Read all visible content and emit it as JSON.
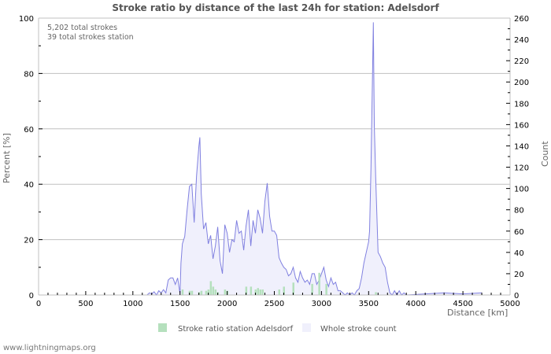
{
  "title": "Stroke ratio by distance of the last 24h for station: Adelsdorf",
  "info": {
    "line1": "5,202 total strokes",
    "line2": "39 total strokes station"
  },
  "footer": "www.lightningmaps.org",
  "colors": {
    "grid": "#c0c0c0",
    "whole_line": "#8080e0",
    "whole_fill": "#f0f0fc",
    "station_bar": "#b5e0bd",
    "axis": "#c0c0c0"
  },
  "legend": [
    {
      "label": "Stroke ratio station Adelsdorf",
      "color": "#b5e0bd"
    },
    {
      "label": "Whole stroke count",
      "color": "#f0f0fc"
    }
  ],
  "chart_data": {
    "type": "bar+area",
    "title": "Stroke ratio by distance of the last 24h for station: Adelsdorf",
    "xlabel": "Distance   [km]",
    "ylabel_left": "Percent   [%]",
    "ylabel_right": "Count",
    "xlim": [
      0,
      5000
    ],
    "ylim_left": [
      0,
      100
    ],
    "ylim_right": [
      0,
      260
    ],
    "x_ticks": [
      0,
      500,
      1000,
      1500,
      2000,
      2500,
      3000,
      3500,
      4000,
      4500,
      5000
    ],
    "y_ticks_left": [
      0,
      20,
      40,
      60,
      80,
      100
    ],
    "y_ticks_right": [
      0,
      20,
      40,
      60,
      80,
      100,
      120,
      140,
      160,
      180,
      200,
      220,
      240,
      260
    ],
    "grid": true,
    "legend_position": "bottom",
    "series": [
      {
        "name": "Whole stroke count",
        "axis": "right",
        "type": "area",
        "x": [
          1150,
          1175,
          1200,
          1225,
          1250,
          1275,
          1300,
          1325,
          1350,
          1375,
          1400,
          1425,
          1450,
          1475,
          1500,
          1510,
          1525,
          1550,
          1575,
          1600,
          1625,
          1650,
          1675,
          1700,
          1710,
          1725,
          1750,
          1775,
          1800,
          1825,
          1850,
          1875,
          1900,
          1925,
          1950,
          1975,
          2000,
          2025,
          2050,
          2075,
          2100,
          2125,
          2150,
          2175,
          2200,
          2225,
          2250,
          2275,
          2300,
          2325,
          2350,
          2375,
          2400,
          2425,
          2450,
          2475,
          2500,
          2525,
          2550,
          2575,
          2600,
          2625,
          2650,
          2675,
          2700,
          2725,
          2750,
          2775,
          2800,
          2825,
          2850,
          2875,
          2900,
          2925,
          2950,
          2975,
          3000,
          3025,
          3050,
          3075,
          3100,
          3125,
          3150,
          3175,
          3200,
          3225,
          3250,
          3275,
          3300,
          3325,
          3350,
          3375,
          3400,
          3425,
          3450,
          3475,
          3500,
          3510,
          3525,
          3540,
          3550,
          3560,
          3575,
          3600,
          3625,
          3650,
          3675,
          3700,
          3725,
          3750,
          3775,
          3800,
          3825,
          3850,
          3875,
          3900,
          4300,
          4500,
          4700
        ],
        "values": [
          0,
          2,
          1,
          3,
          0,
          4,
          2,
          5,
          2,
          14,
          16,
          16,
          10,
          16,
          1,
          30,
          48,
          55,
          80,
          102,
          104,
          68,
          112,
          140,
          148,
          95,
          62,
          68,
          48,
          56,
          34,
          46,
          64,
          32,
          20,
          66,
          58,
          40,
          52,
          50,
          70,
          58,
          60,
          42,
          65,
          80,
          46,
          70,
          58,
          80,
          72,
          58,
          88,
          105,
          74,
          60,
          60,
          56,
          35,
          30,
          26,
          24,
          18,
          20,
          26,
          16,
          12,
          22,
          16,
          12,
          14,
          10,
          20,
          20,
          10,
          14,
          20,
          26,
          14,
          8,
          16,
          10,
          12,
          4,
          4,
          2,
          0,
          2,
          0,
          2,
          0,
          4,
          6,
          16,
          30,
          40,
          50,
          60,
          120,
          200,
          256,
          160,
          110,
          40,
          36,
          30,
          26,
          12,
          2,
          0,
          4,
          0,
          4,
          0,
          2,
          0,
          2,
          1,
          2
        ],
        "color": "#8080e0"
      },
      {
        "name": "Stroke ratio station Adelsdorf",
        "axis": "left",
        "type": "bar",
        "x": [
          1525,
          1600,
          1625,
          1700,
          1725,
          1775,
          1800,
          1825,
          1850,
          1875,
          1900,
          1975,
          2000,
          2200,
          2250,
          2300,
          2325,
          2350,
          2375,
          2550,
          2600,
          2700,
          2900,
          2975,
          3050,
          3575
        ],
        "values": [
          2,
          1.5,
          1.5,
          1,
          1.5,
          1.5,
          2,
          5,
          3,
          2,
          1,
          2,
          1.5,
          3,
          3,
          2,
          2.5,
          2,
          2,
          2,
          3,
          4.5,
          4,
          8,
          4,
          1
        ]
      }
    ]
  }
}
